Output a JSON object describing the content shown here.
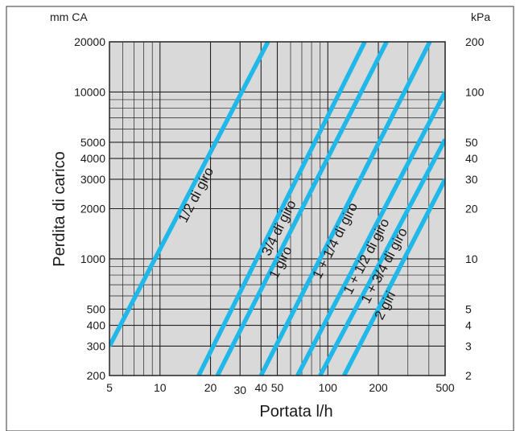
{
  "chart_data": {
    "type": "line",
    "xscale": "log",
    "yscale": "log",
    "xlim": [
      5,
      500
    ],
    "ylim": [
      200,
      20000
    ],
    "xlabel": "Portata l/h",
    "ylabel": "Perdita di carico",
    "y_left_unit": "mm CA",
    "y_right_unit": "kPa",
    "x_ticks": [
      5,
      10,
      20,
      30,
      40,
      50,
      100,
      200,
      500
    ],
    "x_tick_labels": [
      "5",
      "10",
      "20",
      "30",
      "40",
      "50",
      "100",
      "200",
      "500"
    ],
    "y_ticks": [
      200,
      300,
      400,
      500,
      1000,
      2000,
      3000,
      4000,
      5000,
      10000,
      20000
    ],
    "y_tick_labels": [
      "200",
      "300",
      "400",
      "500",
      "1000",
      "2000",
      "3000",
      "4000",
      "5000",
      "10000",
      "20000"
    ],
    "y_right_ticks": [
      200,
      300,
      400,
      500,
      1000,
      2000,
      3000,
      4000,
      5000,
      10000,
      20000
    ],
    "y_right_tick_labels": [
      "2",
      "3",
      "4",
      "5",
      "10",
      "20",
      "30",
      "40",
      "50",
      "100",
      "200"
    ],
    "series_color": "#1fb8e8",
    "grid_color": "#222222",
    "plot_background": "#d9d9d9",
    "series": [
      {
        "name": "1/2 di giro",
        "x": [
          5,
          44
        ],
        "y": [
          300,
          20000
        ]
      },
      {
        "name": "3/4 di giro",
        "x": [
          17,
          166
        ],
        "y": [
          200,
          20000
        ]
      },
      {
        "name": "1 giro",
        "x": [
          22,
          224
        ],
        "y": [
          200,
          20000
        ]
      },
      {
        "name": "1 + 1/4 di giro",
        "x": [
          40,
          405
        ],
        "y": [
          200,
          20000
        ]
      },
      {
        "name": "1 + 1/2 di giro",
        "x": [
          66,
          500
        ],
        "y": [
          200,
          10000
        ]
      },
      {
        "name": "1 + 3/4 di giro",
        "x": [
          90,
          500
        ],
        "y": [
          200,
          5200
        ]
      },
      {
        "name": "2 giri",
        "x": [
          125,
          500
        ],
        "y": [
          200,
          3000
        ]
      }
    ]
  }
}
